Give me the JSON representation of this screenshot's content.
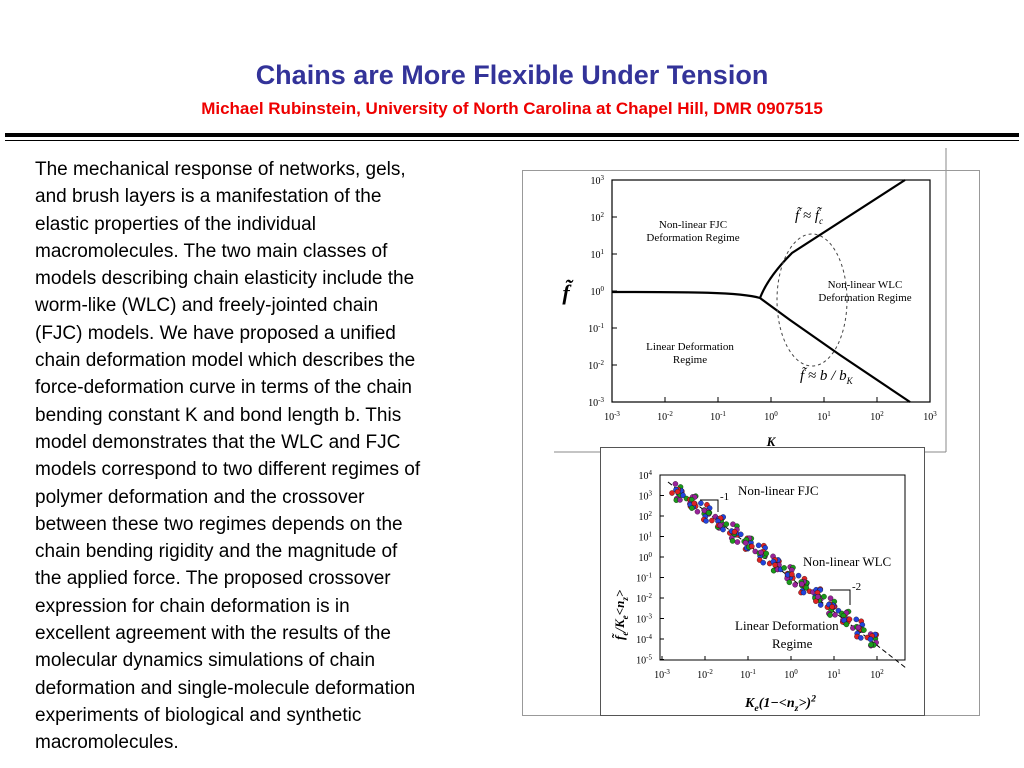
{
  "header": {
    "title": "Chains are More Flexible Under Tension",
    "subtitle": "Michael Rubinstein, University of North Carolina at Chapel Hill, DMR  0907515"
  },
  "body": {
    "lines": [
      "The mechanical response of networks, gels,",
      "and brush layers is a manifestation of the",
      "elastic properties of the individual",
      "macromolecules. The two main classes of",
      "models describing chain elasticity include the",
      "worm-like (WLC) and freely-jointed chain",
      "(FJC) models. We have proposed a unified",
      "chain deformation model which describes the",
      "force-deformation curve in terms of the chain",
      "bending constant K and bond length b. This",
      "model demonstrates that the WLC and FJC",
      "models correspond to two different regimes of",
      "polymer deformation and the crossover",
      "between these two regimes depends on the",
      "chain bending rigidity and the magnitude of",
      "the applied force. The proposed crossover",
      "expression for chain deformation is in",
      "excellent agreement with the results of the",
      "molecular dynamics simulations of chain",
      "deformation and single-molecule deformation",
      "experiments of biological and synthetic",
      "macromolecules."
    ]
  },
  "figure1": {
    "y_label": "f̃",
    "x_label": "K",
    "yticks": [
      {
        "base": "10",
        "exp": "3"
      },
      {
        "base": "10",
        "exp": "2"
      },
      {
        "base": "10",
        "exp": "1"
      },
      {
        "base": "10",
        "exp": "0"
      },
      {
        "base": "10",
        "exp": "-1"
      },
      {
        "base": "10",
        "exp": "-2"
      },
      {
        "base": "10",
        "exp": "-3"
      }
    ],
    "xticks": [
      {
        "base": "10",
        "exp": "-3"
      },
      {
        "base": "10",
        "exp": "-2"
      },
      {
        "base": "10",
        "exp": "-1"
      },
      {
        "base": "10",
        "exp": "0"
      },
      {
        "base": "10",
        "exp": "1"
      },
      {
        "base": "10",
        "exp": "2"
      },
      {
        "base": "10",
        "exp": "3"
      }
    ],
    "regions": [
      [
        "Non-linear FJC",
        "Deformation Regime"
      ],
      [
        "Non-linear WLC",
        "Deformation Regime"
      ],
      [
        "Linear Deformation",
        "Regime"
      ]
    ],
    "annotations": [
      {
        "main": "f̃ ≈ f̃",
        "sub": "c"
      },
      {
        "main": "f̃ ≈ b / b",
        "sub": "K"
      }
    ]
  },
  "figure2": {
    "yticks": [
      {
        "base": "10",
        "exp": "4"
      },
      {
        "base": "10",
        "exp": "3"
      },
      {
        "base": "10",
        "exp": "2"
      },
      {
        "base": "10",
        "exp": "1"
      },
      {
        "base": "10",
        "exp": "0"
      },
      {
        "base": "10",
        "exp": "-1"
      },
      {
        "base": "10",
        "exp": "-2"
      },
      {
        "base": "10",
        "exp": "-3"
      },
      {
        "base": "10",
        "exp": "-4"
      },
      {
        "base": "10",
        "exp": "-5"
      }
    ],
    "xticks": [
      {
        "base": "10",
        "exp": "-3"
      },
      {
        "base": "10",
        "exp": "-2"
      },
      {
        "base": "10",
        "exp": "-1"
      },
      {
        "base": "10",
        "exp": "0"
      },
      {
        "base": "10",
        "exp": "1"
      },
      {
        "base": "10",
        "exp": "2"
      }
    ],
    "labels": [
      "Non-linear FJC",
      "Non-linear WLC",
      "Linear Deformation",
      "Regime"
    ],
    "slopes": [
      "-1",
      "-2"
    ],
    "x_label": [
      {
        "text": "K"
      },
      {
        "text": "e",
        "sub": true
      },
      {
        "text": "(1−<n"
      },
      {
        "text": "z",
        "sub": true
      },
      {
        "text": ">)"
      },
      {
        "text": "2",
        "sup": true
      }
    ],
    "y_label": [
      {
        "text": "f̃"
      },
      {
        "text": "e",
        "sub": true
      },
      {
        "text": "/K"
      },
      {
        "text": "e",
        "sub": true
      },
      {
        "text": "<n"
      },
      {
        "text": "z",
        "sub": true
      },
      {
        "text": ">"
      }
    ]
  }
}
